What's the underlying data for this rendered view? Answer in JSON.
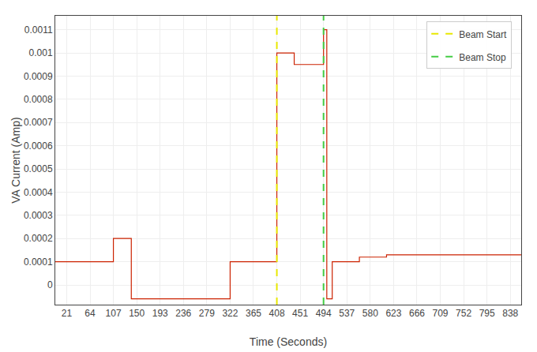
{
  "chart_data": {
    "type": "line",
    "xlabel": "Time (Seconds)",
    "ylabel": "VA Current (Amp)",
    "xlim": [
      0,
      858
    ],
    "ylim": [
      -8.5e-05,
      0.00116
    ],
    "xticks": [
      21,
      64,
      107,
      150,
      193,
      236,
      279,
      322,
      365,
      408,
      451,
      494,
      537,
      580,
      623,
      666,
      709,
      752,
      795,
      838
    ],
    "yticks": [
      0,
      0.0001,
      0.0002,
      0.0003,
      0.0004,
      0.0005,
      0.0006,
      0.0007,
      0.0008,
      0.0009,
      0.001,
      0.0011
    ],
    "grid": true,
    "legend": "upper right",
    "series": [
      {
        "color": "#cc2200",
        "line_style": "solid",
        "x": [
          0,
          107,
          107,
          140,
          140,
          322,
          322,
          408,
          408,
          440,
          440,
          494,
          494,
          500,
          500,
          510,
          510,
          560,
          560,
          610,
          610,
          858
        ],
        "values": [
          0.0001,
          0.0001,
          0.0002,
          0.0002,
          -6e-05,
          -6e-05,
          0.0001,
          0.0001,
          0.001,
          0.001,
          0.00095,
          0.00095,
          0.0011,
          0.0011,
          -6e-05,
          -6e-05,
          0.0001,
          0.0001,
          0.00012,
          0.00012,
          0.00013,
          0.00013
        ]
      },
      {
        "name": "Beam Start",
        "type": "vline",
        "color": "#e8e800",
        "line_style": "dashed",
        "x": [
          408
        ]
      },
      {
        "name": "Beam Stop",
        "type": "vline",
        "color": "#44cc44",
        "line_style": "dashed",
        "x": [
          494
        ]
      }
    ]
  }
}
